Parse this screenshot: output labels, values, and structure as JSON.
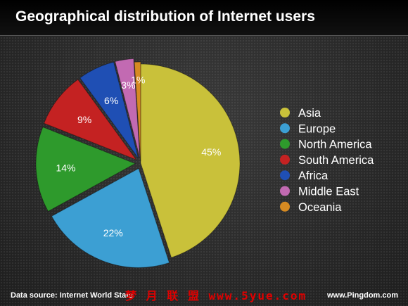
{
  "title": "Geographical distribution of Internet users",
  "footer": {
    "source": "Data source: Internet World Stats",
    "site": "www.Pingdom.com",
    "watermark": "梦 月 联 盟  www.5yue.com"
  },
  "chart_data": {
    "type": "pie",
    "title": "Geographical distribution of Internet users",
    "legend_position": "right",
    "slices": [
      {
        "label": "Asia",
        "value": 45,
        "display": "45%",
        "color": "#c9c13a"
      },
      {
        "label": "Europe",
        "value": 22,
        "display": "22%",
        "color": "#3c9fd3"
      },
      {
        "label": "North America",
        "value": 14,
        "display": "14%",
        "color": "#2e9a2c"
      },
      {
        "label": "South America",
        "value": 9,
        "display": "9%",
        "color": "#c42222"
      },
      {
        "label": "Africa",
        "value": 6,
        "display": "6%",
        "color": "#1f4fb4"
      },
      {
        "label": "Middle East",
        "value": 3,
        "display": "3%",
        "color": "#c26ab2"
      },
      {
        "label": "Oceania",
        "value": 1,
        "display": "1%",
        "color": "#d68a22"
      }
    ]
  }
}
